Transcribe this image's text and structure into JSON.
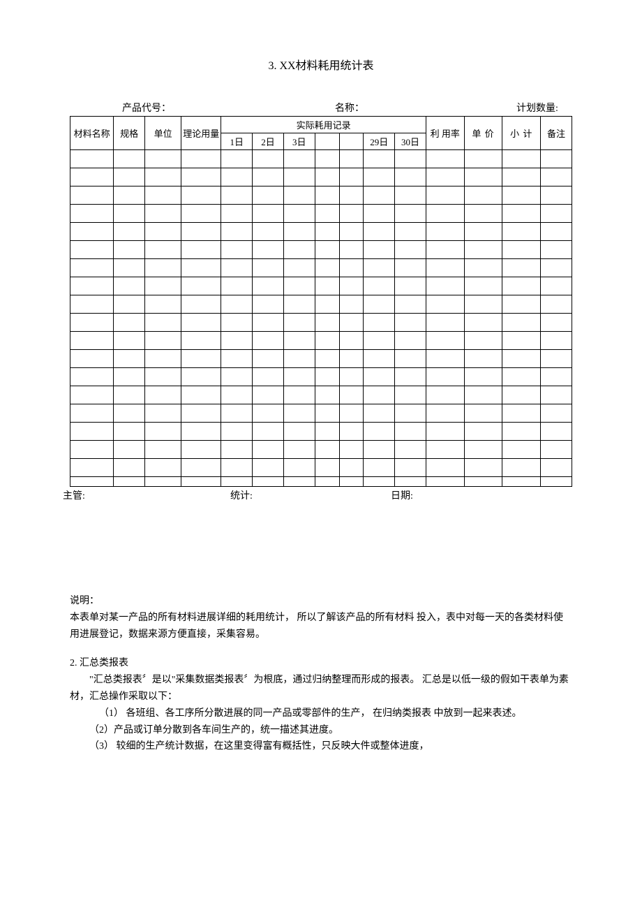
{
  "title": "3.  XX材料耗用统计表",
  "meta": {
    "product_code_label": "产品代号：",
    "name_label": "名称：",
    "plan_qty_label": "计划数量:"
  },
  "headers": {
    "material_name": "材料名称",
    "spec": "规格",
    "unit": "单位",
    "theory_use": "理论用量",
    "actual_record": "实际耗用记录",
    "day1": "1日",
    "day2": "2日",
    "day3": "3日",
    "day29": "29日",
    "day30": "30日",
    "use_rate": "利 用率",
    "unit_price": "单 价",
    "subtotal": "小 计",
    "remark": "备注"
  },
  "table": {
    "data_row_count": 19,
    "columns_total": 15
  },
  "footer": {
    "supervisor": "主管:",
    "stats": "统计:",
    "date": "日期:"
  },
  "explain": {
    "label": "说明：",
    "p1": "本表单对某一产品的所有材料进展详细的耗用统计，  所以了解该产品的所有材料 投入，表中对每一天的各类材料使用进展登记，数据来源方便直接，采集容易。"
  },
  "section2": {
    "heading": "2. 汇总类报表",
    "intro": "\"汇总类报表〞是以\"采集数据类报表〞为根底，通过归纳整理而形成的报表。 汇总是以低一级的假如干表单为素材，汇总操作采取以下：",
    "li1": "（1） 各班组、各工序所分散进展的同一产品或零部件的生产，  在归纳类报表 中放到一起来表述。",
    "li2": "（2）产品或订单分散到各车间生产的，统一描述其进度。",
    "li3": "（3） 较细的生产统计数据，在这里变得富有概括性，只反映大件或整体进度，"
  }
}
